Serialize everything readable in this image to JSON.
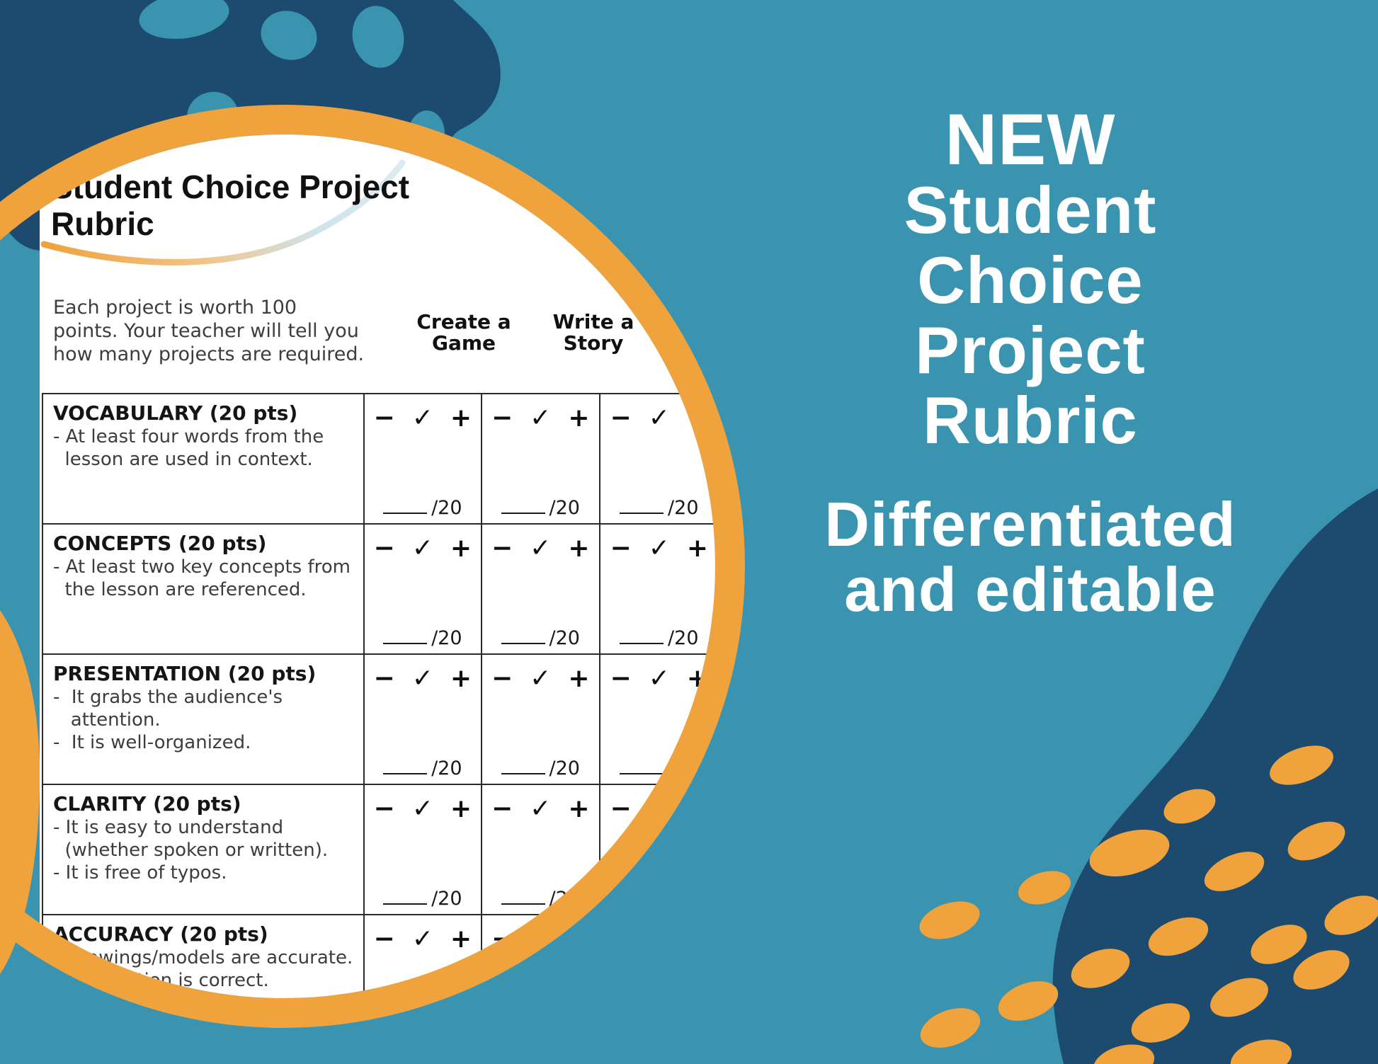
{
  "colors": {
    "background": "#3a93af",
    "navy_blob": "#1d4a6f",
    "orange_accent": "#f0a23c",
    "promo_text": "#ffffff",
    "doc_heading": "#151515",
    "doc_body_text": "#3d3d3d",
    "swoosh_blue": "#cfe2ea"
  },
  "promo": {
    "headline_lines": [
      "NEW",
      "Student",
      "Choice",
      "Project",
      "Rubric"
    ],
    "subheadline_lines": [
      "Differentiated",
      "and editable"
    ]
  },
  "document": {
    "title_lines": [
      "Student Choice Project",
      "Rubric"
    ],
    "intro_lines": [
      "Each project is worth 100",
      "points. Your teacher will tell you",
      "how many projects are required."
    ],
    "column_headers": [
      [
        "Create a",
        "Game"
      ],
      [
        "Write a",
        "Story"
      ]
    ],
    "rating_symbols": [
      "−",
      "✓",
      "+"
    ],
    "score_label": "/20",
    "rows": [
      {
        "criterion": "VOCABULARY (20 pts)",
        "bullet_lines": [
          "- At least four words from the",
          "  lesson are used in context."
        ]
      },
      {
        "criterion": "CONCEPTS (20 pts)",
        "bullet_lines": [
          "- At least two key concepts from",
          "  the lesson are referenced."
        ]
      },
      {
        "criterion": "PRESENTATION (20 pts)",
        "bullet_lines": [
          "-  It grabs the audience's",
          "   attention.",
          "-  It is well-organized."
        ]
      },
      {
        "criterion": "CLARITY (20 pts)",
        "bullet_lines": [
          "- It is easy to understand",
          "  (whether spoken or written).",
          "- It is free of typos."
        ]
      },
      {
        "criterion": "ACCURACY (20 pts)",
        "bullet_lines": [
          "- Drawings/models are accurate.",
          "- Information is correct."
        ]
      }
    ]
  }
}
